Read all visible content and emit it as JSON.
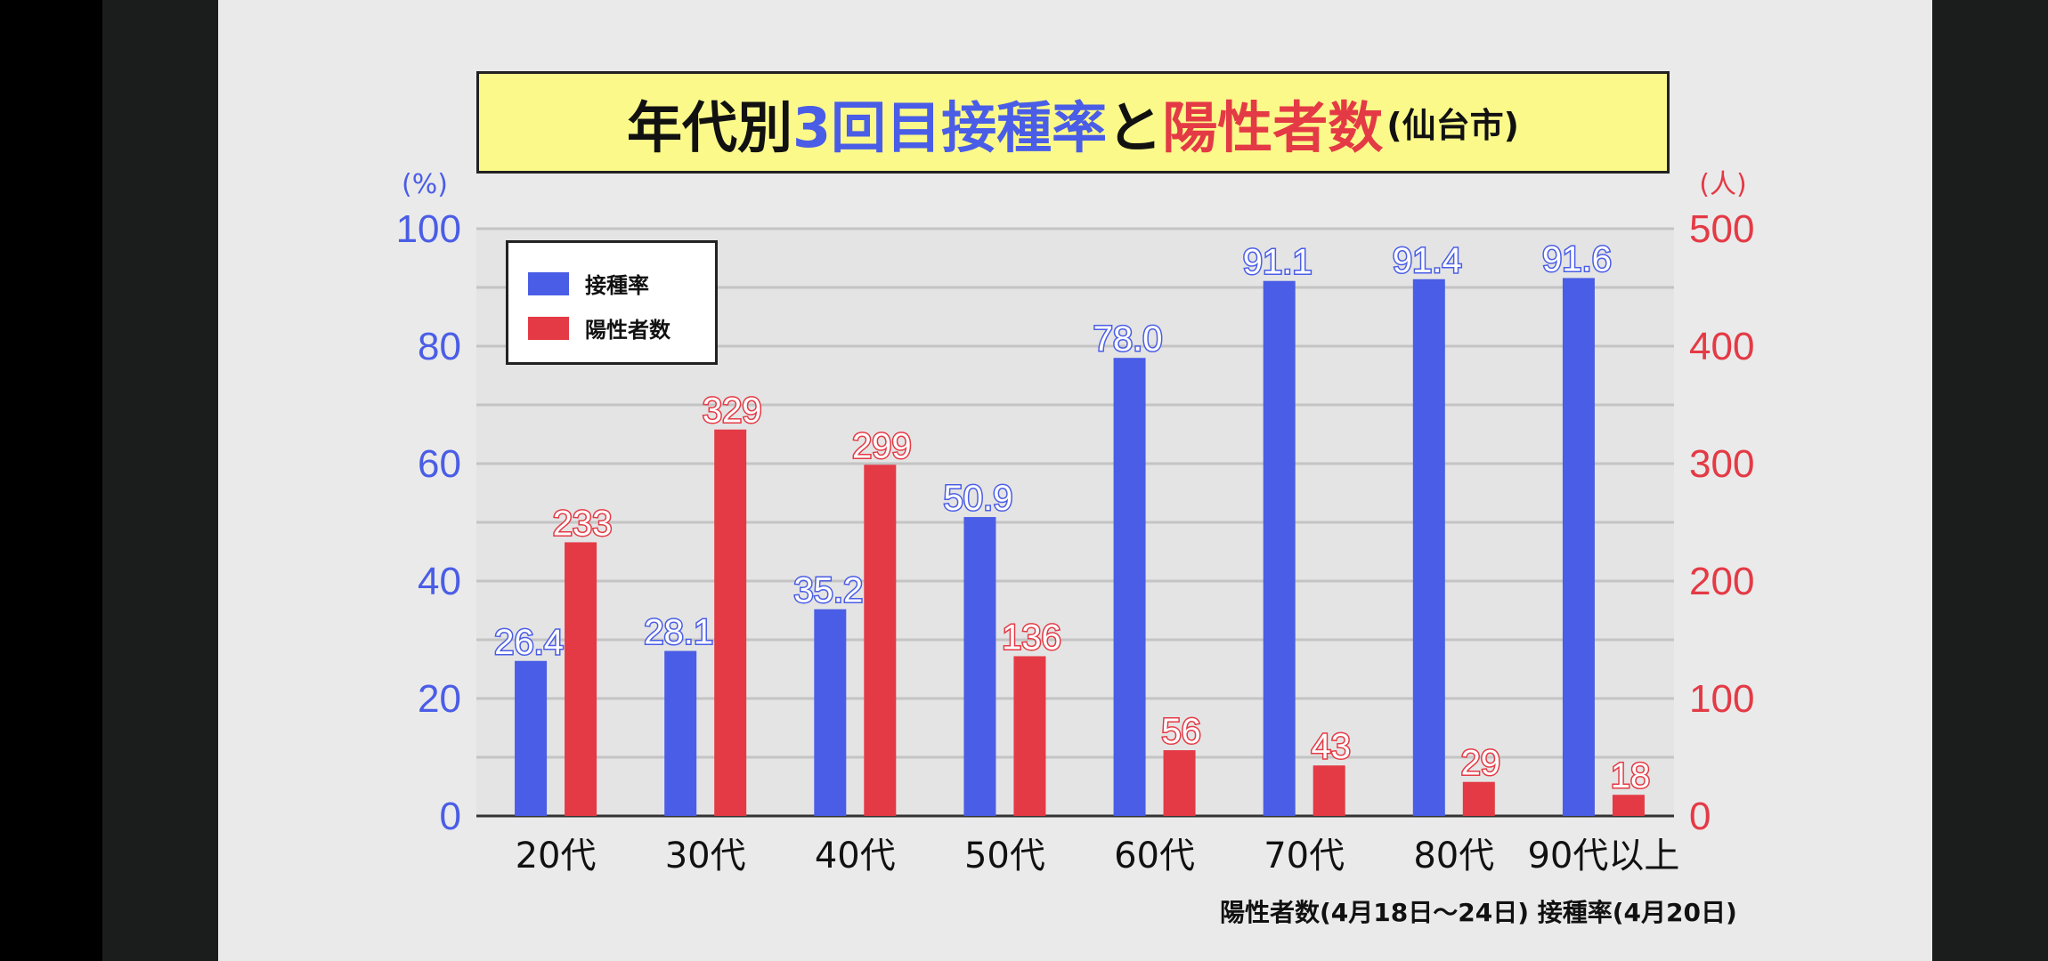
{
  "title": {
    "part1": "年代別",
    "part2": "3回目接種率",
    "part3": "と",
    "part4": "陽性者数",
    "part5": "(仙台市)"
  },
  "legend": {
    "rate": "接種率",
    "cases": "陽性者数"
  },
  "footnote": "陽性者数(4月18日～24日)  接種率(4月20日)",
  "colors": {
    "rate": "#4a5de6",
    "cases": "#e43a45"
  },
  "chart_data": {
    "type": "bar",
    "categories": [
      "20代",
      "30代",
      "40代",
      "50代",
      "60代",
      "70代",
      "80代",
      "90代以上"
    ],
    "series": [
      {
        "name": "接種率",
        "axis": "left",
        "values": [
          26.4,
          28.1,
          35.2,
          50.9,
          78.0,
          91.1,
          91.4,
          91.6
        ],
        "labels": [
          "26.4",
          "28.1",
          "35.2",
          "50.9",
          "78.0",
          "91.1",
          "91.4",
          "91.6"
        ]
      },
      {
        "name": "陽性者数",
        "axis": "right",
        "values": [
          233,
          329,
          299,
          136,
          56,
          43,
          29,
          18
        ],
        "labels": [
          "233",
          "329",
          "299",
          "136",
          "56",
          "43",
          "29",
          "18"
        ]
      }
    ],
    "y_left": {
      "unit": "(%)",
      "ylim": [
        0,
        100
      ],
      "ticks": [
        "0",
        "20",
        "40",
        "60",
        "80",
        "100"
      ]
    },
    "y_right": {
      "unit": "(人)",
      "ylim": [
        0,
        500
      ],
      "ticks": [
        "0",
        "100",
        "200",
        "300",
        "400",
        "500"
      ]
    },
    "grid": true,
    "legend_position": "top-left"
  }
}
